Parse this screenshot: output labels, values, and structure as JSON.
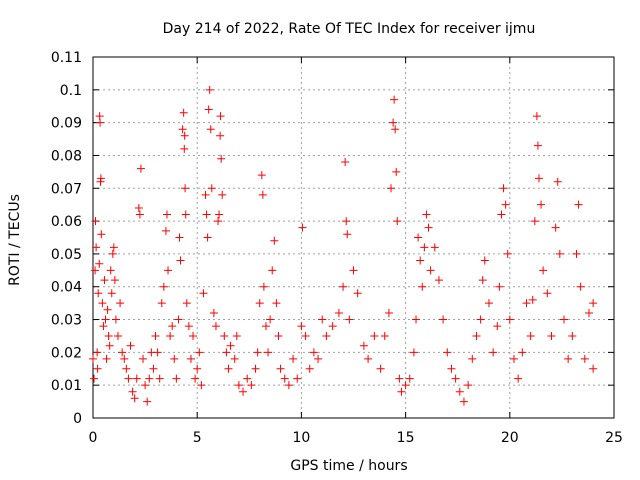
{
  "chart_data": {
    "type": "scatter",
    "title": "Day 214 of 2022, Rate Of TEC Index for receiver ijmu",
    "xlabel": "GPS time / hours",
    "ylabel": "ROTI / TECUs",
    "xlim": [
      0,
      25
    ],
    "ylim": [
      0,
      0.11
    ],
    "x_ticks": [
      0,
      5,
      10,
      15,
      20,
      25
    ],
    "x_tick_labels": [
      "0",
      "5",
      "10",
      "15",
      "20",
      "25"
    ],
    "y_ticks": [
      0,
      0.01,
      0.02,
      0.03,
      0.04,
      0.05,
      0.06,
      0.07,
      0.08,
      0.09,
      0.1,
      0.11
    ],
    "y_tick_labels": [
      "0",
      "0.01",
      "0.02",
      "0.03",
      "0.04",
      "0.05",
      "0.06",
      "0.07",
      "0.08",
      "0.09",
      "0.1",
      "0.11"
    ],
    "grid": true,
    "marker": "plus",
    "color": "#ff0000",
    "series": [
      {
        "points": [
          [
            0.0,
            0.018
          ],
          [
            0.05,
            0.012
          ],
          [
            0.1,
            0.045
          ],
          [
            0.12,
            0.06
          ],
          [
            0.15,
            0.052
          ],
          [
            0.2,
            0.02
          ],
          [
            0.22,
            0.015
          ],
          [
            0.25,
            0.038
          ],
          [
            0.3,
            0.047
          ],
          [
            0.32,
            0.092
          ],
          [
            0.34,
            0.09
          ],
          [
            0.36,
            0.072
          ],
          [
            0.38,
            0.073
          ],
          [
            0.4,
            0.056
          ],
          [
            0.45,
            0.035
          ],
          [
            0.5,
            0.028
          ],
          [
            0.55,
            0.042
          ],
          [
            0.6,
            0.03
          ],
          [
            0.65,
            0.018
          ],
          [
            0.7,
            0.033
          ],
          [
            0.75,
            0.025
          ],
          [
            0.8,
            0.022
          ],
          [
            0.85,
            0.045
          ],
          [
            0.9,
            0.038
          ],
          [
            0.95,
            0.05
          ],
          [
            1.0,
            0.052
          ],
          [
            1.05,
            0.042
          ],
          [
            1.1,
            0.03
          ],
          [
            1.2,
            0.025
          ],
          [
            1.3,
            0.035
          ],
          [
            1.4,
            0.02
          ],
          [
            1.5,
            0.018
          ],
          [
            1.6,
            0.015
          ],
          [
            1.7,
            0.012
          ],
          [
            1.8,
            0.022
          ],
          [
            1.9,
            0.008
          ],
          [
            2.0,
            0.006
          ],
          [
            2.1,
            0.012
          ],
          [
            2.2,
            0.064
          ],
          [
            2.25,
            0.062
          ],
          [
            2.3,
            0.076
          ],
          [
            2.4,
            0.018
          ],
          [
            2.5,
            0.01
          ],
          [
            2.6,
            0.005
          ],
          [
            2.7,
            0.012
          ],
          [
            2.8,
            0.02
          ],
          [
            2.9,
            0.015
          ],
          [
            3.0,
            0.025
          ],
          [
            3.1,
            0.02
          ],
          [
            3.2,
            0.012
          ],
          [
            3.3,
            0.035
          ],
          [
            3.4,
            0.04
          ],
          [
            3.5,
            0.057
          ],
          [
            3.55,
            0.062
          ],
          [
            3.6,
            0.045
          ],
          [
            3.7,
            0.025
          ],
          [
            3.8,
            0.028
          ],
          [
            3.9,
            0.018
          ],
          [
            4.0,
            0.012
          ],
          [
            4.1,
            0.03
          ],
          [
            4.15,
            0.055
          ],
          [
            4.2,
            0.048
          ],
          [
            4.3,
            0.088
          ],
          [
            4.35,
            0.093
          ],
          [
            4.38,
            0.082
          ],
          [
            4.4,
            0.086
          ],
          [
            4.42,
            0.07
          ],
          [
            4.45,
            0.062
          ],
          [
            4.5,
            0.035
          ],
          [
            4.6,
            0.028
          ],
          [
            4.7,
            0.018
          ],
          [
            4.8,
            0.025
          ],
          [
            4.9,
            0.012
          ],
          [
            5.0,
            0.015
          ],
          [
            5.1,
            0.02
          ],
          [
            5.2,
            0.01
          ],
          [
            5.3,
            0.038
          ],
          [
            5.4,
            0.068
          ],
          [
            5.45,
            0.062
          ],
          [
            5.5,
            0.055
          ],
          [
            5.55,
            0.094
          ],
          [
            5.6,
            0.1
          ],
          [
            5.65,
            0.088
          ],
          [
            5.7,
            0.07
          ],
          [
            5.8,
            0.032
          ],
          [
            5.9,
            0.028
          ],
          [
            6.0,
            0.06
          ],
          [
            6.05,
            0.062
          ],
          [
            6.1,
            0.086
          ],
          [
            6.12,
            0.092
          ],
          [
            6.15,
            0.079
          ],
          [
            6.2,
            0.068
          ],
          [
            6.3,
            0.025
          ],
          [
            6.4,
            0.02
          ],
          [
            6.5,
            0.015
          ],
          [
            6.6,
            0.022
          ],
          [
            6.8,
            0.018
          ],
          [
            6.9,
            0.025
          ],
          [
            7.0,
            0.01
          ],
          [
            7.2,
            0.008
          ],
          [
            7.4,
            0.012
          ],
          [
            7.6,
            0.01
          ],
          [
            7.8,
            0.015
          ],
          [
            7.9,
            0.02
          ],
          [
            8.0,
            0.035
          ],
          [
            8.1,
            0.074
          ],
          [
            8.15,
            0.068
          ],
          [
            8.2,
            0.04
          ],
          [
            8.3,
            0.028
          ],
          [
            8.4,
            0.02
          ],
          [
            8.5,
            0.03
          ],
          [
            8.6,
            0.045
          ],
          [
            8.7,
            0.054
          ],
          [
            8.8,
            0.035
          ],
          [
            8.9,
            0.025
          ],
          [
            9.0,
            0.015
          ],
          [
            9.2,
            0.012
          ],
          [
            9.4,
            0.01
          ],
          [
            9.6,
            0.018
          ],
          [
            9.8,
            0.012
          ],
          [
            10.0,
            0.028
          ],
          [
            10.05,
            0.058
          ],
          [
            10.2,
            0.025
          ],
          [
            10.4,
            0.015
          ],
          [
            10.6,
            0.02
          ],
          [
            10.8,
            0.018
          ],
          [
            11.0,
            0.03
          ],
          [
            11.2,
            0.025
          ],
          [
            11.5,
            0.028
          ],
          [
            11.8,
            0.032
          ],
          [
            12.0,
            0.04
          ],
          [
            12.1,
            0.078
          ],
          [
            12.15,
            0.06
          ],
          [
            12.2,
            0.056
          ],
          [
            12.3,
            0.03
          ],
          [
            12.5,
            0.045
          ],
          [
            12.7,
            0.038
          ],
          [
            13.0,
            0.022
          ],
          [
            13.2,
            0.018
          ],
          [
            13.5,
            0.025
          ],
          [
            13.8,
            0.015
          ],
          [
            14.0,
            0.025
          ],
          [
            14.2,
            0.032
          ],
          [
            14.3,
            0.07
          ],
          [
            14.4,
            0.09
          ],
          [
            14.45,
            0.097
          ],
          [
            14.5,
            0.088
          ],
          [
            14.55,
            0.075
          ],
          [
            14.6,
            0.06
          ],
          [
            14.7,
            0.012
          ],
          [
            14.8,
            0.008
          ],
          [
            15.0,
            0.01
          ],
          [
            15.2,
            0.012
          ],
          [
            15.4,
            0.02
          ],
          [
            15.5,
            0.03
          ],
          [
            15.6,
            0.055
          ],
          [
            15.7,
            0.048
          ],
          [
            15.8,
            0.04
          ],
          [
            15.9,
            0.052
          ],
          [
            16.0,
            0.062
          ],
          [
            16.1,
            0.058
          ],
          [
            16.2,
            0.045
          ],
          [
            16.4,
            0.052
          ],
          [
            16.6,
            0.042
          ],
          [
            16.8,
            0.03
          ],
          [
            17.0,
            0.02
          ],
          [
            17.2,
            0.015
          ],
          [
            17.4,
            0.012
          ],
          [
            17.6,
            0.008
          ],
          [
            17.8,
            0.005
          ],
          [
            18.0,
            0.01
          ],
          [
            18.2,
            0.018
          ],
          [
            18.4,
            0.025
          ],
          [
            18.6,
            0.03
          ],
          [
            18.7,
            0.042
          ],
          [
            18.8,
            0.048
          ],
          [
            19.0,
            0.035
          ],
          [
            19.2,
            0.02
          ],
          [
            19.4,
            0.028
          ],
          [
            19.5,
            0.04
          ],
          [
            19.6,
            0.062
          ],
          [
            19.7,
            0.07
          ],
          [
            19.8,
            0.065
          ],
          [
            19.9,
            0.05
          ],
          [
            20.0,
            0.03
          ],
          [
            20.2,
            0.018
          ],
          [
            20.4,
            0.012
          ],
          [
            20.6,
            0.02
          ],
          [
            20.8,
            0.035
          ],
          [
            21.0,
            0.025
          ],
          [
            21.1,
            0.036
          ],
          [
            21.2,
            0.06
          ],
          [
            21.3,
            0.092
          ],
          [
            21.35,
            0.083
          ],
          [
            21.4,
            0.073
          ],
          [
            21.5,
            0.065
          ],
          [
            21.6,
            0.045
          ],
          [
            21.8,
            0.038
          ],
          [
            22.0,
            0.025
          ],
          [
            22.2,
            0.058
          ],
          [
            22.3,
            0.072
          ],
          [
            22.4,
            0.05
          ],
          [
            22.6,
            0.03
          ],
          [
            22.8,
            0.018
          ],
          [
            23.0,
            0.025
          ],
          [
            23.2,
            0.05
          ],
          [
            23.3,
            0.065
          ],
          [
            23.4,
            0.04
          ],
          [
            23.6,
            0.018
          ],
          [
            23.8,
            0.032
          ],
          [
            24.0,
            0.035
          ],
          [
            24.0,
            0.015
          ]
        ]
      }
    ]
  }
}
